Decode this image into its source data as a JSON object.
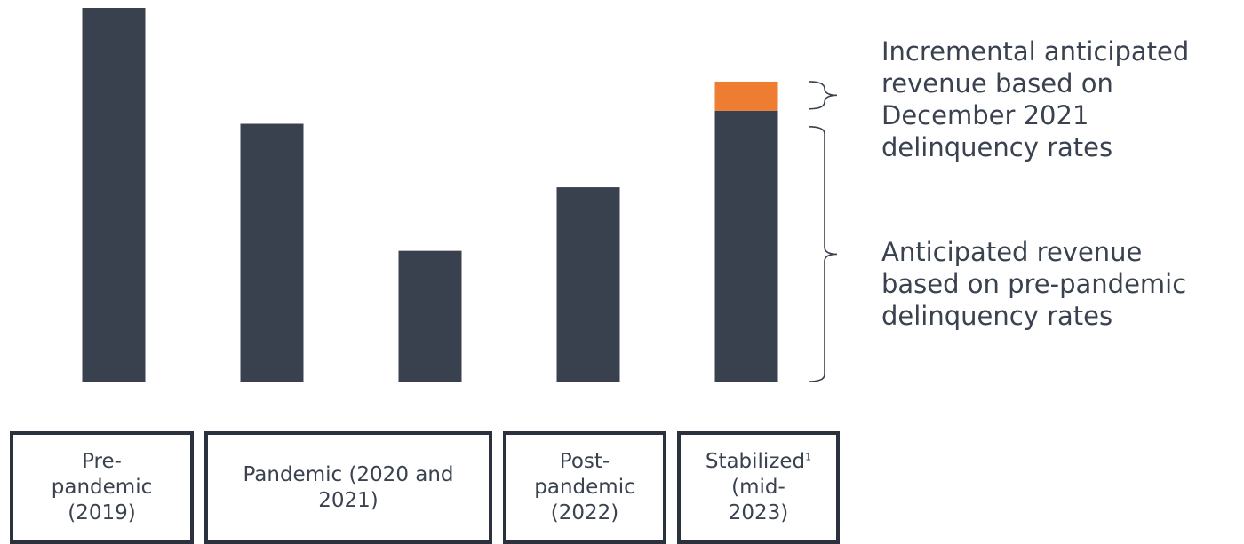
{
  "chart_data": {
    "type": "bar",
    "stacked": true,
    "categories": [
      "Pre-pandemic (2019)",
      "Pandemic (2020 and 2021)",
      "",
      "Post-pandemic (2022)",
      "Stabilized (mid-2023)"
    ],
    "series": [
      {
        "name": "Anticipated revenue based on pre-pandemic delinquency rates",
        "color": "#39414f",
        "values": [
          100,
          69,
          35,
          52,
          72.5
        ]
      },
      {
        "name": "Incremental anticipated revenue based on December 2021 delinquency rates",
        "color": "#ee7d31",
        "values": [
          0,
          0,
          0,
          0,
          7.8
        ]
      }
    ],
    "ylim": [
      0,
      100
    ],
    "grid": false,
    "axes_visible": false,
    "legend": "right, bracket annotations"
  },
  "labels": {
    "boxes": [
      {
        "text": "Pre-\npandemic\n(2019)",
        "sup": ""
      },
      {
        "text": "Pandemic (2020 and\n2021)",
        "sup": ""
      },
      {
        "text": "Post-\npandemic\n(2022)",
        "sup": ""
      },
      {
        "text": "Stabilized",
        "sup": "1",
        "text_after": "\n(mid-\n2023)"
      }
    ]
  },
  "annotations": {
    "incremental": "Incremental anticipated\nrevenue based on\nDecember 2021\ndelinquency rates",
    "base": "Anticipated revenue\nbased on pre-pandemic\ndelinquency rates"
  },
  "colors": {
    "bar": "#39414f",
    "accent": "#ee7d31",
    "text": "#3a4250",
    "border": "#2b313d"
  }
}
